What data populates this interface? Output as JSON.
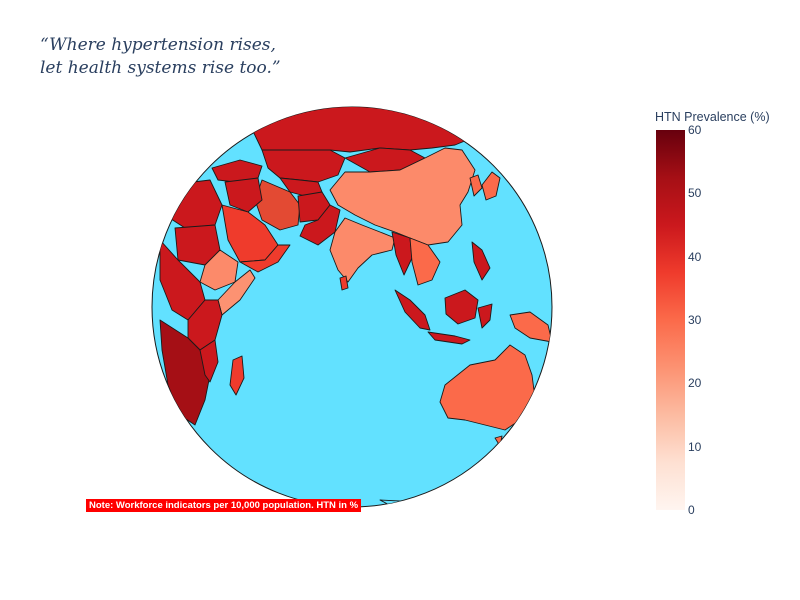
{
  "title": {
    "line1": "“Where hypertension rises,",
    "line2": "let health systems rise too.”"
  },
  "note": "Note: Workforce indicators per 10,000 population. HTN in %",
  "colorbar": {
    "title": "HTN Prevalence (%)",
    "ticks": [
      "0",
      "10",
      "20",
      "30",
      "40",
      "50",
      "60"
    ],
    "range": [
      0,
      60
    ],
    "colorscale": [
      "#fff5f0",
      "#fee0d2",
      "#fcbba1",
      "#fc9272",
      "#fb6a4a",
      "#ef3b2c",
      "#cb181d",
      "#a50f15",
      "#67000d"
    ]
  },
  "map": {
    "projection": "orthographic",
    "ocean_color": "#62e1ff",
    "border_color": "#1a1a1a",
    "regions": [
      {
        "name": "Russia",
        "htn": 44
      },
      {
        "name": "China",
        "htn": 27
      },
      {
        "name": "India",
        "htn": 29
      },
      {
        "name": "Kazakhstan",
        "htn": 44
      },
      {
        "name": "Iran",
        "htn": 36
      },
      {
        "name": "Saudi Arabia",
        "htn": 37
      },
      {
        "name": "Egypt",
        "htn": 44
      },
      {
        "name": "Ethiopia",
        "htn": 26
      },
      {
        "name": "Australia",
        "htn": 33
      },
      {
        "name": "Indonesia",
        "htn": 43
      },
      {
        "name": "Myanmar",
        "htn": 44
      },
      {
        "name": "Japan",
        "htn": 34
      }
    ]
  }
}
